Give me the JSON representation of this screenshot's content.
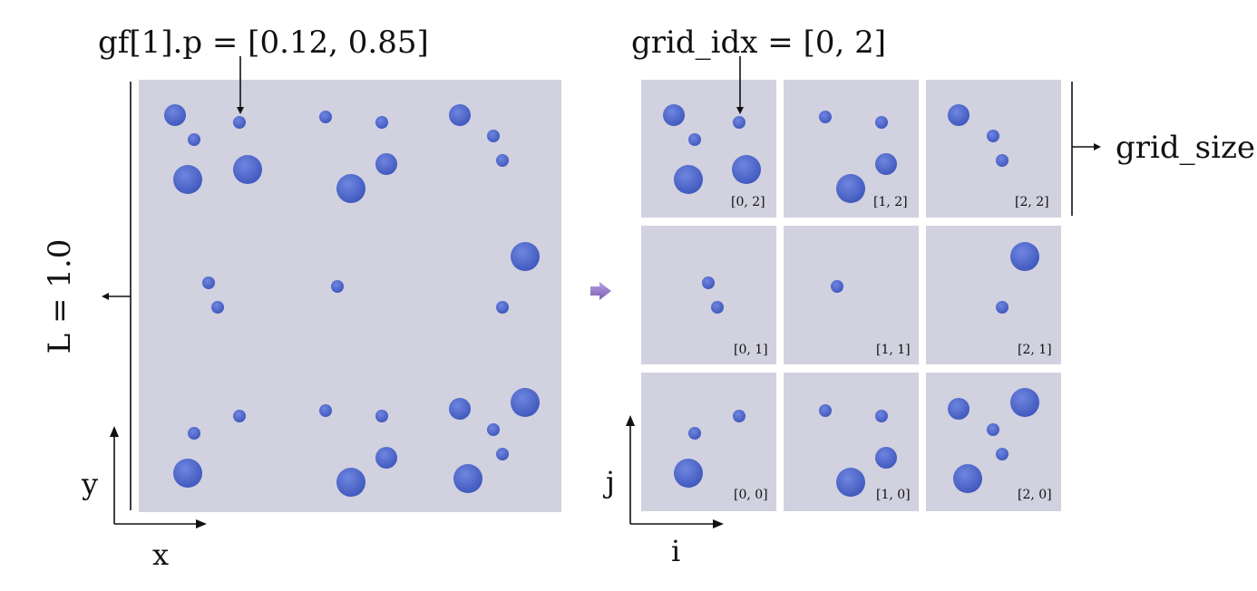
{
  "left_panel": {
    "annotation": "gf[1].p = [0.12, 0.85]",
    "side_label": "L = 1.0",
    "axis_x": "x",
    "axis_y": "y"
  },
  "right_panel": {
    "annotation": "grid_idx = [0, 2]",
    "size_label": "grid_size",
    "axis_x": "i",
    "axis_y": "j",
    "cells": [
      {
        "label": "[0, 2]"
      },
      {
        "label": "[1, 2]"
      },
      {
        "label": "[2, 2]"
      },
      {
        "label": "[0, 1]"
      },
      {
        "label": "[1, 1]"
      },
      {
        "label": "[2, 1]"
      },
      {
        "label": "[0, 0]"
      },
      {
        "label": "[1, 0]"
      },
      {
        "label": "[2, 0]"
      }
    ]
  },
  "colors": {
    "panel": "#d1d1df",
    "particle": "#4a64c8",
    "arrow_icon": "#8a6fc0"
  }
}
